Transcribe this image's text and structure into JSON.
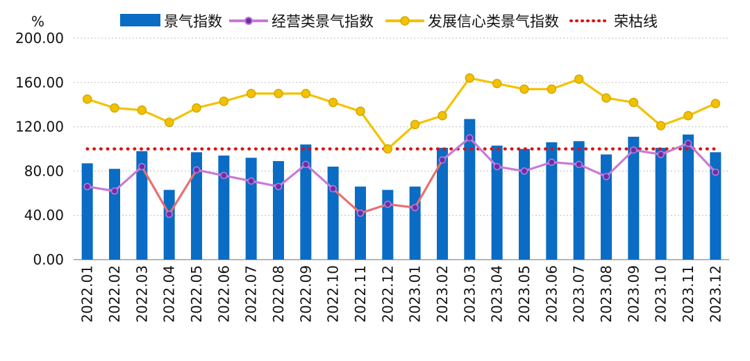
{
  "chart_data": {
    "type": "bar",
    "title": "",
    "ylabel": "%",
    "xlabel": "",
    "ylim": [
      0,
      200
    ],
    "yticks": [
      "0.00",
      "40.00",
      "80.00",
      "120.00",
      "160.00",
      "200.00"
    ],
    "grid": "horizontal-dotted",
    "legend_position": "top",
    "categories": [
      "2022.01",
      "2022.02",
      "2022.03",
      "2022.04",
      "2022.05",
      "2022.06",
      "2022.07",
      "2022.08",
      "2022.09",
      "2022.10",
      "2022.11",
      "2022.12",
      "2023.01",
      "2023.02",
      "2023.03",
      "2023.04",
      "2023.05",
      "2023.06",
      "2023.07",
      "2023.08",
      "2023.09",
      "2023.10",
      "2023.11",
      "2023.12"
    ],
    "series": [
      {
        "name": "景气指数",
        "kind": "bar",
        "color": "#0a6cc4",
        "values": [
          87,
          82,
          98,
          63,
          97,
          94,
          92,
          89,
          104,
          84,
          66,
          63,
          66,
          101,
          127,
          103,
          100,
          106,
          107,
          95,
          111,
          101,
          113,
          97
        ]
      },
      {
        "name": "经营类景气指数",
        "kind": "line",
        "color": "#c77ad6",
        "marker_color": "#6a2fa8",
        "values": [
          66,
          62,
          84,
          41,
          81,
          76,
          71,
          66,
          86,
          64,
          42,
          50,
          47,
          90,
          110,
          84,
          80,
          88,
          86,
          75,
          99,
          95,
          105,
          79
        ]
      },
      {
        "name": "发展信心类景气指数",
        "kind": "line",
        "color": "#f2c200",
        "marker_color": "#f2c200",
        "values": [
          145,
          137,
          135,
          124,
          137,
          143,
          150,
          150,
          150,
          142,
          134,
          100,
          122,
          130,
          164,
          159,
          154,
          154,
          163,
          146,
          142,
          121,
          130,
          141
        ]
      },
      {
        "name": "荣枯线",
        "kind": "reference",
        "color": "#e01010",
        "values": [
          100,
          100,
          100,
          100,
          100,
          100,
          100,
          100,
          100,
          100,
          100,
          100,
          100,
          100,
          100,
          100,
          100,
          100,
          100,
          100,
          100,
          100,
          100,
          100
        ]
      }
    ]
  }
}
